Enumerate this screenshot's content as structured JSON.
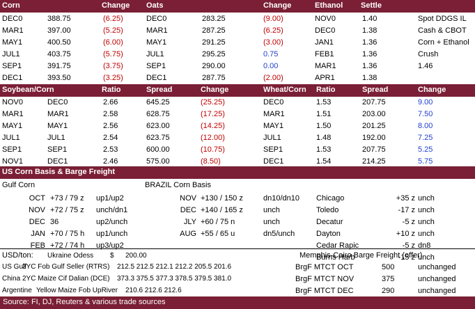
{
  "table1": {
    "headers": [
      "Corn",
      "Change",
      "Oats",
      "Change",
      "Ethanol",
      "Settle"
    ],
    "rows": [
      {
        "corn_m": "DEC0",
        "corn_p": "388.75",
        "corn_c": "(6.25)",
        "oats_m": "DEC0",
        "oats_p": "283.25",
        "oats_c": "(9.00)",
        "eth_m": "NOV0",
        "eth_p": "1.40",
        "extra": "Spot DDGS IL"
      },
      {
        "corn_m": "MAR1",
        "corn_p": "397.00",
        "corn_c": "(5.25)",
        "oats_m": "MAR1",
        "oats_p": "287.25",
        "oats_c": "(6.25)",
        "eth_m": "DEC0",
        "eth_p": "1.38",
        "extra": "Cash & CBOT"
      },
      {
        "corn_m": "MAY1",
        "corn_p": "400.50",
        "corn_c": "(6.00)",
        "oats_m": "MAY1",
        "oats_p": "291.25",
        "oats_c": "(3.00)",
        "eth_m": "JAN1",
        "eth_p": "1.36",
        "extra": "Corn + Ethanol"
      },
      {
        "corn_m": "JUL1",
        "corn_p": "403.75",
        "corn_c": "(5.75)",
        "oats_m": "JUL1",
        "oats_p": "295.25",
        "oats_c": "0.75",
        "eth_m": "FEB1",
        "eth_p": "1.36",
        "extra": "Crush"
      },
      {
        "corn_m": "SEP1",
        "corn_p": "391.75",
        "corn_c": "(3.75)",
        "oats_m": "SEP1",
        "oats_p": "290.00",
        "oats_c": "0.00",
        "eth_m": "MAR1",
        "eth_p": "1.36",
        "extra": "1.46"
      },
      {
        "corn_m": "DEC1",
        "corn_p": "393.50",
        "corn_c": "(3.25)",
        "oats_m": "DEC1",
        "oats_p": "287.75",
        "oats_c": "(2.00)",
        "eth_m": "APR1",
        "eth_p": "1.38",
        "extra": ""
      }
    ]
  },
  "table2": {
    "headers": [
      "Soybean/Corn",
      "Ratio",
      "Spread",
      "Change",
      "Wheat/Corn",
      "Ratio",
      "Spread",
      "Change"
    ],
    "rows": [
      {
        "s1": "NOV0",
        "s2": "DEC0",
        "ratio": "2.66",
        "spread": "645.25",
        "chg": "(25.25)",
        "w1": "DEC0",
        "wratio": "1.53",
        "wspread": "207.75",
        "wchg": "9.00"
      },
      {
        "s1": "MAR1",
        "s2": "MAR1",
        "ratio": "2.58",
        "spread": "628.75",
        "chg": "(17.25)",
        "w1": "MAR1",
        "wratio": "1.51",
        "wspread": "203.00",
        "wchg": "7.50"
      },
      {
        "s1": "MAY1",
        "s2": "MAY1",
        "ratio": "2.56",
        "spread": "623.00",
        "chg": "(14.25)",
        "w1": "MAY1",
        "wratio": "1.50",
        "wspread": "201.25",
        "wchg": "8.00"
      },
      {
        "s1": "JUL1",
        "s2": "JUL1",
        "ratio": "2.54",
        "spread": "623.75",
        "chg": "(12.00)",
        "w1": "JUL1",
        "wratio": "1.48",
        "wspread": "192.00",
        "wchg": "7.25"
      },
      {
        "s1": "SEP1",
        "s2": "SEP1",
        "ratio": "2.53",
        "spread": "600.00",
        "chg": "(10.75)",
        "w1": "SEP1",
        "wratio": "1.53",
        "wspread": "207.75",
        "wchg": "5.25"
      },
      {
        "s1": "NOV1",
        "s2": "DEC1",
        "ratio": "2.46",
        "spread": "575.00",
        "chg": "(8.50)",
        "w1": "DEC1",
        "wratio": "1.54",
        "wspread": "214.25",
        "wchg": "5.75"
      }
    ]
  },
  "basis": {
    "header": "US Corn Basis & Barge Freight",
    "gulf_title": "Gulf Corn",
    "brazil_title": "BRAZIL Corn Basis",
    "gulf": [
      {
        "month": "OCT",
        "price": "+73 / 79 z",
        "chg": "up1/up2"
      },
      {
        "month": "NOV",
        "price": "+72 / 75 z",
        "chg": "unch/dn1"
      },
      {
        "month": "DEC",
        "price": "36",
        "chg": "up2/unch"
      },
      {
        "month": "JAN",
        "price": "+70 / 75 h",
        "chg": "up1/unch"
      },
      {
        "month": "FEB",
        "price": "+72 / 74 h",
        "chg": "up3/up2"
      }
    ],
    "brazil": [
      {
        "month": "NOV",
        "price": "+130 / 150 z",
        "chg": "dn10/dn10"
      },
      {
        "month": "DEC",
        "price": "+140 / 165 z",
        "chg": "unch"
      },
      {
        "month": "JLY",
        "price": "+60 / 75 n",
        "chg": "unch"
      },
      {
        "month": "AUG",
        "price": "+55 / 65 u",
        "chg": "dn5/unch"
      }
    ],
    "terminals": [
      {
        "name": "Chicago",
        "price": "+35 z",
        "chg": "unch"
      },
      {
        "name": "Toledo",
        "price": "-17 z",
        "chg": "unch"
      },
      {
        "name": "Decatur",
        "price": "-5 z",
        "chg": "unch"
      },
      {
        "name": "Dayton",
        "price": "+10 z",
        "chg": "unch"
      },
      {
        "name": "Cedar Rapic",
        "price": "-5 z",
        "chg": "dn8"
      },
      {
        "name": "Burns Harb",
        "price": "-15 z",
        "chg": "unch"
      }
    ]
  },
  "usdton": {
    "label": "USD/ton:",
    "ukraine_label": "Ukraine Odess",
    "ukraine_currency": "$",
    "ukraine_value": "200.00",
    "barge_title": "Memphis-Cairo Barge Freight (offer)",
    "rows": [
      {
        "origin": "US Gulf",
        "desc": "3YC Fob Gulf Seller (RTRS)",
        "vals": "212.5  212.5  212.1  212.2  205.5  201.6"
      },
      {
        "origin": "China",
        "desc": "2YC Maize Cif Dalian (DCE)",
        "vals": "373.3  375.5  377.3  378.5  379.5  381.0"
      },
      {
        "origin": "Argentine",
        "desc": "Yellow Maize Fob UpRiver",
        "vals": "210.6  212.6  212.6"
      }
    ],
    "barge": [
      {
        "label": "BrgF MTCT OCT",
        "value": "500",
        "chg": "unchanged"
      },
      {
        "label": "BrgF MTCT NOV",
        "value": "375",
        "chg": "unchanged"
      },
      {
        "label": "BrgF MTCT DEC",
        "value": "290",
        "chg": "unchanged"
      }
    ]
  },
  "footer": "Source: FI, DJ, Reuters & various trade sources",
  "colors": {
    "header_bg": "#7a1f35",
    "negative": "#c00000",
    "positive": "#1f3fcf"
  }
}
